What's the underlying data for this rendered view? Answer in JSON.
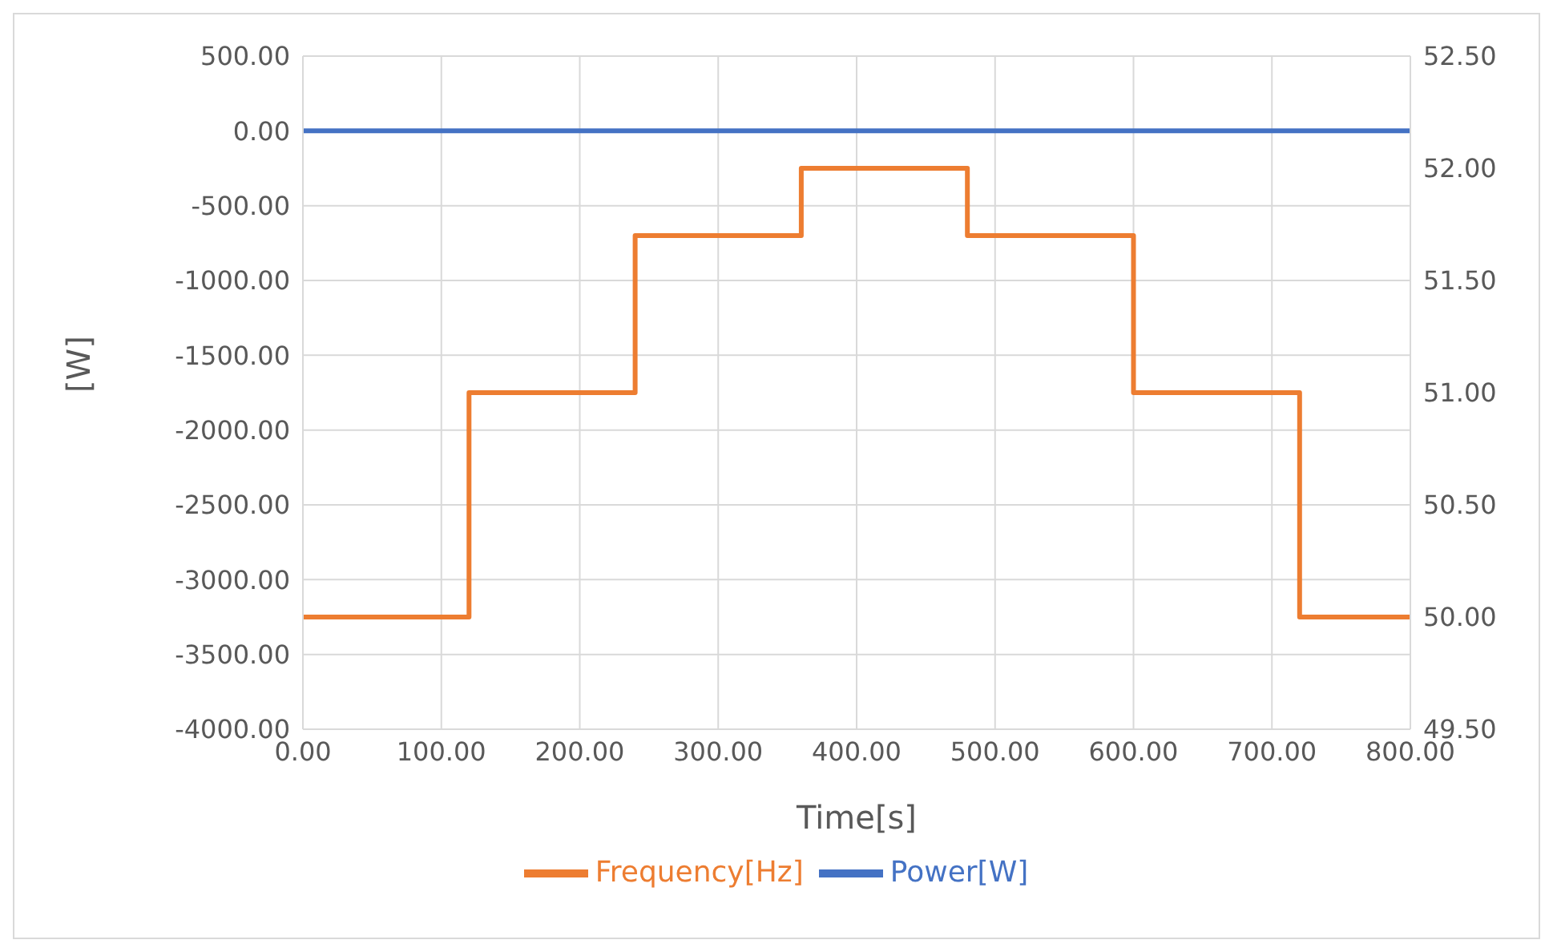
{
  "chart_data": {
    "type": "line",
    "xlabel": "Time[s]",
    "ylabel": "[W]",
    "xlim": [
      0,
      800
    ],
    "xticks": [
      {
        "value": 0,
        "label": "0.00"
      },
      {
        "value": 100,
        "label": "100.00"
      },
      {
        "value": 200,
        "label": "200.00"
      },
      {
        "value": 300,
        "label": "300.00"
      },
      {
        "value": 400,
        "label": "400.00"
      },
      {
        "value": 500,
        "label": "500.00"
      },
      {
        "value": 600,
        "label": "600.00"
      },
      {
        "value": 700,
        "label": "700.00"
      },
      {
        "value": 800,
        "label": "800.00"
      }
    ],
    "ylim": [
      -4000,
      500
    ],
    "yticks": [
      {
        "value": -4000,
        "label": "-4000.00"
      },
      {
        "value": -3500,
        "label": "-3500.00"
      },
      {
        "value": -3000,
        "label": "-3000.00"
      },
      {
        "value": -2500,
        "label": "-2500.00"
      },
      {
        "value": -2000,
        "label": "-2000.00"
      },
      {
        "value": -1500,
        "label": "-1500.00"
      },
      {
        "value": -1000,
        "label": "-1000.00"
      },
      {
        "value": -500,
        "label": "-500.00"
      },
      {
        "value": 0,
        "label": "0.00"
      },
      {
        "value": 500,
        "label": "500.00"
      }
    ],
    "y2lim": [
      49.5,
      52.5
    ],
    "y2ticks": [
      {
        "value": 49.5,
        "label": "49.50"
      },
      {
        "value": 50,
        "label": "50.00"
      },
      {
        "value": 50.5,
        "label": "50.50"
      },
      {
        "value": 51,
        "label": "51.00"
      },
      {
        "value": 51.5,
        "label": "51.50"
      },
      {
        "value": 52,
        "label": "52.00"
      },
      {
        "value": 52.5,
        "label": "52.50"
      }
    ],
    "grid": true,
    "legend": "bottom",
    "marker": "none",
    "line_style": "solid",
    "series": [
      {
        "name": "Power[W]",
        "color": "#4472c4",
        "x": [
          0,
          800
        ],
        "values": [
          0,
          0
        ]
      },
      {
        "name": "Frequency[Hz]",
        "color": "#ed7d31",
        "axis": "y2",
        "x": [
          0,
          120,
          120,
          240,
          240,
          360,
          360,
          480,
          480,
          600,
          600,
          720,
          720,
          800
        ],
        "values": [
          50,
          50,
          51,
          51,
          51.7,
          51.7,
          52,
          52,
          51.7,
          51.7,
          51,
          51,
          50,
          50
        ]
      }
    ]
  }
}
